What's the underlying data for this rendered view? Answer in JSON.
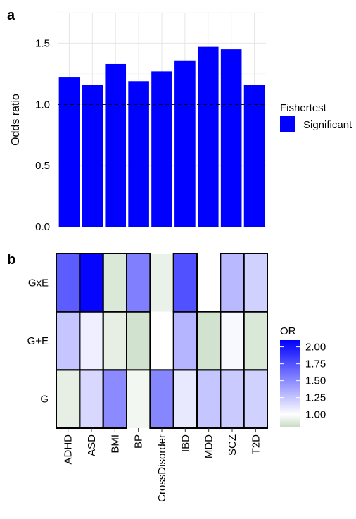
{
  "chart_data": [
    {
      "type": "bar",
      "panel_label": "a",
      "categories": [
        "ADHD",
        "ASD",
        "BMI",
        "BP",
        "CrossDisorder",
        "IBD",
        "MDD",
        "SCZ",
        "T2D"
      ],
      "values": [
        1.22,
        1.16,
        1.33,
        1.19,
        1.27,
        1.36,
        1.47,
        1.45,
        1.16
      ],
      "ylabel": "Odds ratio",
      "ylim": [
        0,
        1.75
      ],
      "yticks": [
        "0.0",
        "0.5",
        "1.0",
        "1.5"
      ],
      "reference_line": 1.0,
      "grid": true,
      "bar_color": "#0000FF",
      "legend": {
        "title": "Fishertest",
        "entries": [
          "Significant"
        ],
        "placement": "right"
      }
    },
    {
      "type": "heatmap",
      "panel_label": "b",
      "x": [
        "ADHD",
        "ASD",
        "BMI",
        "BP",
        "CrossDisorder",
        "IBD",
        "MDD",
        "SCZ",
        "T2D"
      ],
      "y": [
        "GxE",
        "G+E",
        "G"
      ],
      "values": [
        [
          1.7,
          2.08,
          0.88,
          1.55,
          0.93,
          1.75,
          1.0,
          1.3,
          1.2
        ],
        [
          1.25,
          1.07,
          0.92,
          0.85,
          1.0,
          1.32,
          0.85,
          1.03,
          0.88
        ],
        [
          0.92,
          1.17,
          1.5,
          0.96,
          1.52,
          1.1,
          1.25,
          1.23,
          1.2
        ]
      ],
      "outlined": [
        [
          true,
          true,
          true,
          true,
          false,
          true,
          false,
          true,
          true
        ],
        [
          true,
          true,
          true,
          true,
          false,
          true,
          true,
          true,
          true
        ],
        [
          true,
          true,
          true,
          false,
          true,
          true,
          true,
          true,
          true
        ]
      ],
      "color_scale": {
        "low": "#C8DCC4",
        "mid": "#FFFFFF",
        "high": "#0000FF",
        "min": 0.82,
        "mid_value": 1.0,
        "max": 2.1
      },
      "legend": {
        "title": "OR",
        "ticks": [
          "2.00",
          "1.75",
          "1.50",
          "1.25",
          "1.00"
        ],
        "placement": "right"
      }
    }
  ]
}
